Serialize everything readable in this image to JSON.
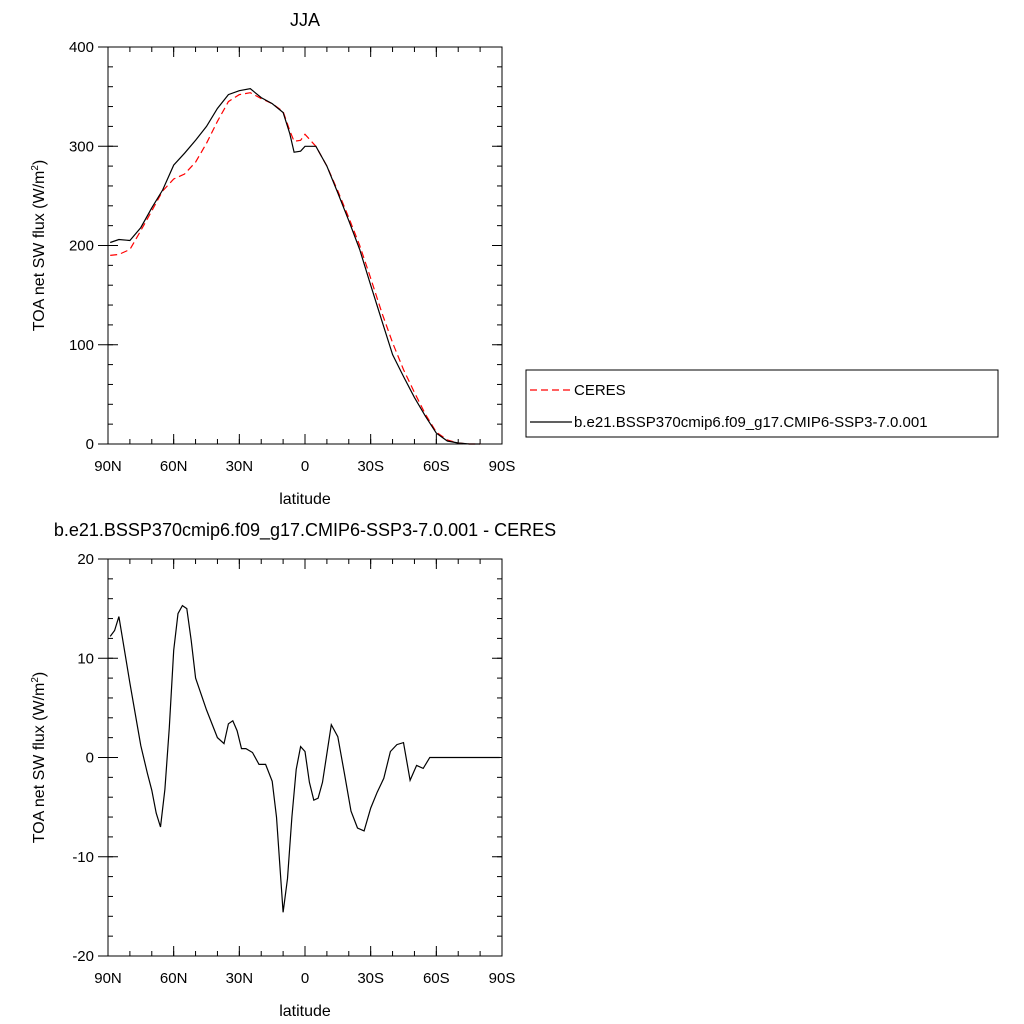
{
  "chart_data": [
    {
      "type": "line",
      "title": "JJA",
      "xlabel": "latitude",
      "ylabel": "TOA net SW flux (W/m",
      "ylabel_sup": "2",
      "ylabel_close": ")",
      "xlim": [
        90,
        -90
      ],
      "ylim": [
        0,
        400
      ],
      "x_ticks": [
        90,
        60,
        30,
        0,
        -30,
        -60,
        -90
      ],
      "x_tick_labels": [
        "90N",
        "60N",
        "30N",
        "0",
        "30S",
        "60S",
        "90S"
      ],
      "y_ticks": [
        0,
        100,
        200,
        300,
        400
      ],
      "y_tick_labels": [
        "0",
        "100",
        "200",
        "300",
        "400"
      ],
      "grid": false,
      "legend_position": "right",
      "series": [
        {
          "name": "CERES",
          "color": "#ff0000",
          "dash": "dashed",
          "x": [
            89,
            85,
            80,
            75,
            70,
            65,
            60,
            55,
            50,
            45,
            40,
            35,
            30,
            25,
            20,
            15,
            10,
            7,
            5,
            2,
            0,
            -5,
            -10,
            -15,
            -20,
            -25,
            -30,
            -35,
            -40,
            -45,
            -50,
            -55,
            -60,
            -65,
            -70,
            -75,
            -80
          ],
          "y": [
            190,
            191,
            196,
            215,
            235,
            255,
            267,
            272,
            284,
            303,
            325,
            345,
            352,
            354,
            348,
            343,
            335,
            316,
            305,
            306,
            312,
            300,
            280,
            255,
            228,
            200,
            167,
            133,
            102,
            75,
            52,
            30,
            12,
            4,
            1,
            0,
            0
          ]
        },
        {
          "name": "b.e21.BSSP370cmip6.f09_g17.CMIP6-SSP3-7.0.001",
          "color": "#000000",
          "dash": "solid",
          "x": [
            89,
            85,
            80,
            75,
            70,
            65,
            60,
            55,
            50,
            45,
            40,
            35,
            30,
            25,
            20,
            15,
            10,
            7,
            5,
            2,
            0,
            -5,
            -10,
            -15,
            -20,
            -25,
            -30,
            -35,
            -40,
            -45,
            -50,
            -55,
            -60,
            -65,
            -70,
            -75,
            -80
          ],
          "y": [
            203,
            206,
            205,
            218,
            238,
            256,
            281,
            293,
            306,
            320,
            338,
            352,
            356,
            358,
            349,
            343,
            334,
            313,
            294,
            295,
            300,
            300,
            280,
            253,
            225,
            196,
            160,
            125,
            90,
            68,
            47,
            28,
            11,
            3,
            1,
            0,
            0
          ]
        }
      ]
    },
    {
      "type": "line",
      "title": "b.e21.BSSP370cmip6.f09_g17.CMIP6-SSP3-7.0.001 - CERES",
      "xlabel": "latitude",
      "ylabel": "TOA net SW flux (W/m",
      "ylabel_sup": "2",
      "ylabel_close": ")",
      "xlim": [
        90,
        -90
      ],
      "ylim": [
        -20,
        20
      ],
      "x_ticks": [
        90,
        60,
        30,
        0,
        -30,
        -60,
        -90
      ],
      "x_tick_labels": [
        "90N",
        "60N",
        "30N",
        "0",
        "30S",
        "60S",
        "90S"
      ],
      "y_ticks": [
        -20,
        -10,
        0,
        10,
        20
      ],
      "y_tick_labels": [
        "-20",
        "-10",
        "0",
        "10",
        "20"
      ],
      "grid": false,
      "series": [
        {
          "name": "",
          "color": "#000000",
          "dash": "solid",
          "x": [
            89,
            87,
            85,
            80,
            75,
            72,
            70,
            68,
            66,
            64,
            62,
            60,
            58,
            56,
            54,
            52,
            50,
            45,
            40,
            37,
            35,
            33,
            31,
            29,
            27,
            24,
            21,
            18,
            15,
            13,
            10,
            8,
            6,
            4,
            2,
            0,
            -2,
            -4,
            -6,
            -8,
            -10,
            -12,
            -15,
            -18,
            -21,
            -24,
            -27,
            -30,
            -33,
            -36,
            -39,
            -42,
            -45,
            -48,
            -51,
            -54,
            -57,
            -60,
            -63,
            -65,
            -67,
            -69,
            -71,
            -73,
            -75,
            -80,
            -85,
            -89
          ],
          "y": [
            12.2,
            12.8,
            14.2,
            7.5,
            1.2,
            -1.6,
            -3.3,
            -5.6,
            -7.0,
            -3.2,
            3.0,
            10.8,
            14.5,
            15.3,
            15.0,
            11.8,
            8.0,
            4.8,
            2.0,
            1.4,
            3.4,
            3.7,
            2.7,
            0.9,
            0.9,
            0.5,
            -0.7,
            -0.7,
            -2.4,
            -6.0,
            -15.6,
            -12.2,
            -6.0,
            -1.2,
            1.1,
            0.6,
            -2.5,
            -4.3,
            -4.1,
            -2.5,
            0.4,
            3.3,
            2.1,
            -1.6,
            -5.4,
            -7.1,
            -7.4,
            -5.1,
            -3.5,
            -2.1,
            0.6,
            1.3,
            1.5,
            -2.3,
            -0.8,
            -1.1,
            0.0,
            0.0,
            0.0,
            0.0,
            0.0,
            0.0,
            0.0,
            0.0,
            0.0,
            0.0,
            0.0,
            0.0
          ]
        }
      ]
    }
  ]
}
